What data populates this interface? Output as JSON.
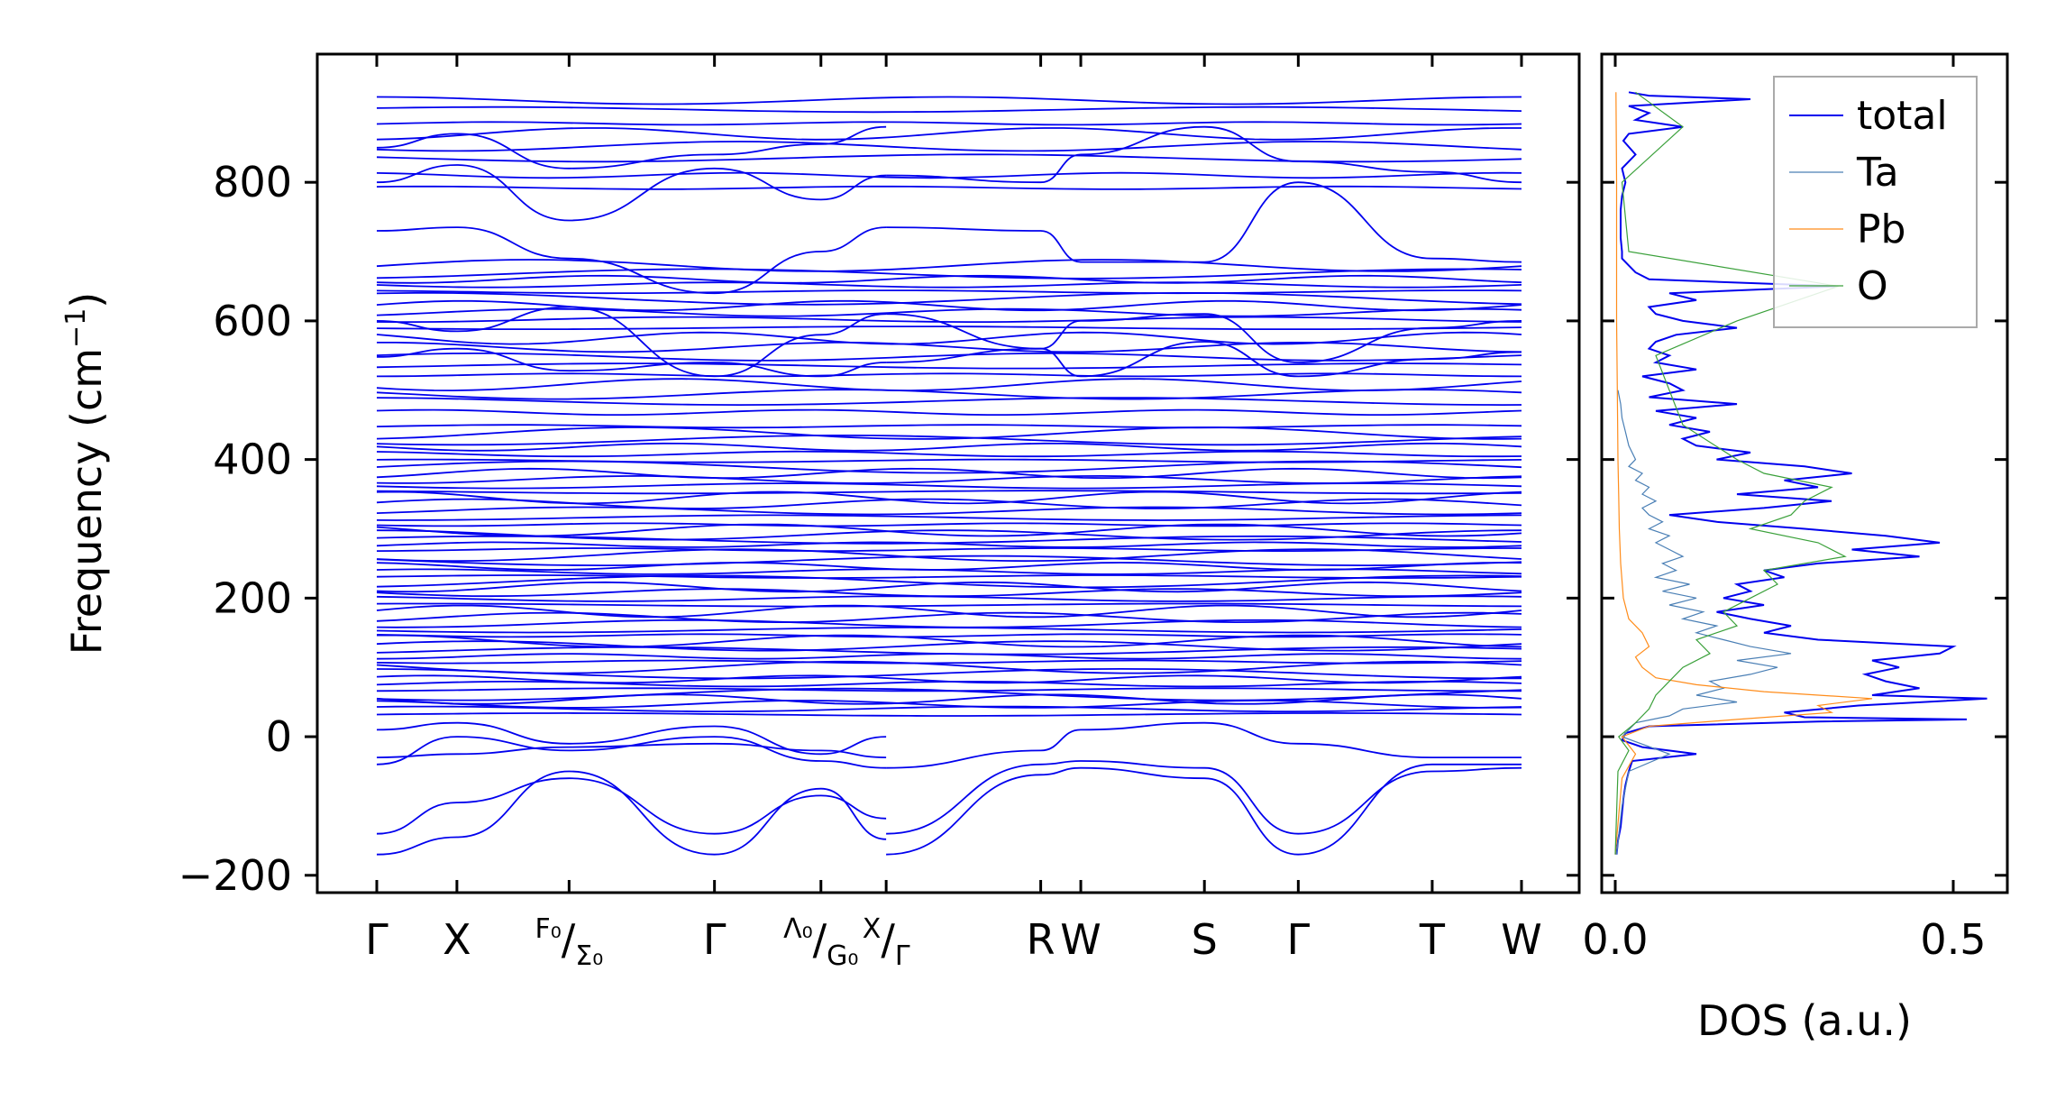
{
  "chart_data": [
    {
      "type": "line",
      "panel": "phonon-dispersion",
      "ylabel": "Frequency (cm",
      "ylabel_sup": "−1",
      "ylabel_close": ")",
      "ylim": [
        -225,
        985
      ],
      "yticks": [
        -200,
        0,
        200,
        400,
        600,
        800
      ],
      "ytick_labels": [
        "−200",
        "0",
        "200",
        "400",
        "600",
        "800"
      ],
      "x_path_range": [
        0,
        1
      ],
      "kpoints": [
        {
          "label": "Γ",
          "x": 0.0
        },
        {
          "label": "X",
          "x": 0.07
        },
        {
          "label": "F₀/Σ₀",
          "label_main": "F₀",
          "label_sub": "Σ₀",
          "x": 0.168
        },
        {
          "label": "Γ",
          "x": 0.295
        },
        {
          "label": "Λ₀/G₀",
          "label_main": "Λ₀",
          "label_sub": "G₀",
          "x": 0.388
        },
        {
          "label": "X/Γ",
          "label_main": "X",
          "label_sub": "Γ",
          "x": 0.445
        },
        {
          "label": "R",
          "x": 0.58
        },
        {
          "label": "W",
          "x": 0.615
        },
        {
          "label": "S",
          "x": 0.723
        },
        {
          "label": "Γ",
          "x": 0.805
        },
        {
          "label": "T",
          "x": 0.922
        },
        {
          "label": "W",
          "x": 1.0
        }
      ],
      "line_color": "#0000ee",
      "flat_band_frequencies": [
        32,
        40,
        47,
        54,
        61,
        68,
        76,
        83,
        91,
        100,
        108,
        116,
        124,
        131,
        138,
        146,
        154,
        163,
        172,
        181,
        190,
        199,
        208,
        216,
        224,
        231,
        238,
        246,
        254,
        262,
        270,
        277,
        284,
        291,
        298,
        306,
        316,
        326,
        336,
        345,
        353,
        362,
        371,
        380,
        389,
        398,
        408,
        418,
        428,
        438,
        448,
        468,
        484,
        494,
        508,
        522,
        535,
        548,
        562,
        575,
        590,
        602,
        612,
        622,
        632,
        642,
        652,
        660,
        668,
        680,
        792,
        810,
        835,
        852,
        870,
        885,
        905,
        918
      ],
      "dispersive_bands": [
        {
          "x": [
            0.0,
            0.07,
            0.168,
            0.295,
            0.388,
            0.445
          ],
          "y": [
            -170,
            -145,
            -50,
            -170,
            -75,
            -148
          ]
        },
        {
          "x": [
            0.0,
            0.07,
            0.168,
            0.295,
            0.388,
            0.445
          ],
          "y": [
            -140,
            -95,
            -60,
            -140,
            -85,
            -118
          ]
        },
        {
          "x": [
            0.0,
            0.07,
            0.168,
            0.295,
            0.388,
            0.445
          ],
          "y": [
            -40,
            0,
            -20,
            0,
            -35,
            -45
          ]
        },
        {
          "x": [
            0.0,
            0.07,
            0.168,
            0.295,
            0.388,
            0.445
          ],
          "y": [
            -30,
            -25,
            -15,
            -10,
            -20,
            -30
          ]
        },
        {
          "x": [
            0.0,
            0.07,
            0.168,
            0.295,
            0.388,
            0.445
          ],
          "y": [
            10,
            20,
            -10,
            15,
            -25,
            0
          ]
        },
        {
          "x": [
            0.0,
            0.07,
            0.168,
            0.295,
            0.388,
            0.445
          ],
          "y": [
            730,
            735,
            690,
            640,
            700,
            735
          ]
        },
        {
          "x": [
            0.0,
            0.07,
            0.168,
            0.295,
            0.388,
            0.445
          ],
          "y": [
            800,
            825,
            745,
            820,
            775,
            810
          ]
        },
        {
          "x": [
            0.0,
            0.07,
            0.168,
            0.295,
            0.388,
            0.445
          ],
          "y": [
            850,
            870,
            820,
            840,
            855,
            880
          ]
        },
        {
          "x": [
            0.0,
            0.07,
            0.168,
            0.295,
            0.388,
            0.445
          ],
          "y": [
            600,
            585,
            620,
            520,
            580,
            610
          ]
        },
        {
          "x": [
            0.0,
            0.07,
            0.168,
            0.295,
            0.388,
            0.445
          ],
          "y": [
            548,
            560,
            528,
            540,
            520,
            540
          ]
        },
        {
          "x": [
            0.445,
            0.58,
            0.615,
            0.723,
            0.805,
            0.922,
            1.0
          ],
          "y": [
            -170,
            -55,
            -45,
            -60,
            -170,
            -40,
            -40
          ]
        },
        {
          "x": [
            0.445,
            0.58,
            0.615,
            0.723,
            0.805,
            0.922,
            1.0
          ],
          "y": [
            -140,
            -40,
            -35,
            -45,
            -140,
            -50,
            -45
          ]
        },
        {
          "x": [
            0.445,
            0.58,
            0.615,
            0.723,
            0.805,
            0.922,
            1.0
          ],
          "y": [
            -45,
            -20,
            10,
            20,
            -10,
            -30,
            -30
          ]
        },
        {
          "x": [
            0.445,
            0.58,
            0.615,
            0.723,
            0.805,
            0.922,
            1.0
          ],
          "y": [
            735,
            730,
            685,
            685,
            800,
            690,
            685
          ]
        },
        {
          "x": [
            0.445,
            0.58,
            0.615,
            0.723,
            0.805,
            0.922,
            1.0
          ],
          "y": [
            810,
            800,
            840,
            880,
            830,
            815,
            800
          ]
        },
        {
          "x": [
            0.445,
            0.58,
            0.615,
            0.723,
            0.805,
            0.922,
            1.0
          ],
          "y": [
            610,
            560,
            600,
            610,
            540,
            590,
            600
          ]
        },
        {
          "x": [
            0.445,
            0.58,
            0.615,
            0.723,
            0.805,
            0.922,
            1.0
          ],
          "y": [
            540,
            560,
            520,
            570,
            520,
            545,
            555
          ]
        }
      ]
    },
    {
      "type": "line",
      "panel": "density-of-states",
      "xlabel": "DOS (a.u.)",
      "xlim": [
        -0.02,
        0.58
      ],
      "xticks": [
        0.0,
        0.5
      ],
      "xtick_labels": [
        "0.0",
        "0.5"
      ],
      "ylim": [
        -225,
        985
      ],
      "legend_position": "top-right",
      "series": [
        {
          "name": "total",
          "color": "#0000ee",
          "y": [
            -170,
            -150,
            -130,
            -110,
            -90,
            -70,
            -50,
            -35,
            -25,
            -15,
            -5,
            5,
            15,
            22,
            25,
            28,
            35,
            45,
            55,
            60,
            70,
            80,
            90,
            100,
            110,
            120,
            130,
            140,
            150,
            160,
            170,
            180,
            190,
            200,
            210,
            220,
            230,
            240,
            250,
            260,
            270,
            280,
            290,
            300,
            310,
            320,
            330,
            340,
            350,
            360,
            370,
            380,
            390,
            400,
            410,
            420,
            430,
            440,
            450,
            460,
            470,
            480,
            490,
            500,
            510,
            520,
            530,
            540,
            550,
            560,
            570,
            580,
            590,
            600,
            610,
            620,
            630,
            640,
            650,
            660,
            670,
            680,
            690,
            700,
            720,
            740,
            760,
            780,
            800,
            820,
            840,
            860,
            870,
            880,
            890,
            900,
            910,
            920,
            925,
            930
          ],
          "x": [
            0.002,
            0.004,
            0.008,
            0.01,
            0.012,
            0.015,
            0.02,
            0.025,
            0.12,
            0.04,
            0.01,
            0.015,
            0.05,
            0.3,
            0.52,
            0.28,
            0.25,
            0.36,
            0.55,
            0.38,
            0.45,
            0.4,
            0.37,
            0.42,
            0.38,
            0.48,
            0.5,
            0.3,
            0.22,
            0.26,
            0.2,
            0.15,
            0.22,
            0.16,
            0.2,
            0.18,
            0.25,
            0.22,
            0.3,
            0.45,
            0.35,
            0.48,
            0.4,
            0.28,
            0.15,
            0.08,
            0.22,
            0.32,
            0.18,
            0.3,
            0.25,
            0.35,
            0.28,
            0.15,
            0.2,
            0.12,
            0.1,
            0.14,
            0.08,
            0.12,
            0.06,
            0.18,
            0.05,
            0.1,
            0.08,
            0.04,
            0.12,
            0.06,
            0.08,
            0.05,
            0.06,
            0.09,
            0.18,
            0.1,
            0.06,
            0.05,
            0.12,
            0.08,
            0.33,
            0.05,
            0.03,
            0.02,
            0.01,
            0.01,
            0.008,
            0.008,
            0.008,
            0.01,
            0.015,
            0.01,
            0.03,
            0.012,
            0.02,
            0.1,
            0.03,
            0.05,
            0.02,
            0.2,
            0.05,
            0.02
          ]
        },
        {
          "name": "Ta",
          "color": "#4a7fb5",
          "y": [
            -170,
            -100,
            -50,
            -25,
            0,
            20,
            30,
            40,
            50,
            60,
            70,
            80,
            90,
            100,
            110,
            120,
            130,
            140,
            150,
            160,
            170,
            180,
            190,
            200,
            210,
            220,
            230,
            240,
            250,
            260,
            270,
            280,
            290,
            300,
            310,
            320,
            330,
            340,
            350,
            360,
            370,
            380,
            390,
            400,
            420,
            440,
            460,
            480,
            500
          ],
          "x": [
            0.002,
            0.01,
            0.02,
            0.08,
            0.01,
            0.03,
            0.08,
            0.1,
            0.18,
            0.12,
            0.16,
            0.14,
            0.2,
            0.24,
            0.18,
            0.26,
            0.2,
            0.16,
            0.12,
            0.15,
            0.1,
            0.13,
            0.08,
            0.12,
            0.07,
            0.11,
            0.06,
            0.09,
            0.07,
            0.1,
            0.08,
            0.06,
            0.08,
            0.05,
            0.07,
            0.05,
            0.04,
            0.06,
            0.04,
            0.05,
            0.03,
            0.04,
            0.02,
            0.03,
            0.02,
            0.015,
            0.01,
            0.008,
            0.004
          ]
        },
        {
          "name": "Pb",
          "color": "#ff8c1a",
          "y": [
            -170,
            -60,
            -25,
            0,
            15,
            25,
            35,
            45,
            55,
            65,
            75,
            85,
            100,
            115,
            130,
            150,
            170,
            200,
            250,
            300,
            350,
            400,
            500,
            600,
            700,
            800,
            930
          ],
          "x": [
            0.0,
            0.01,
            0.03,
            0.01,
            0.05,
            0.18,
            0.32,
            0.3,
            0.38,
            0.22,
            0.12,
            0.06,
            0.04,
            0.03,
            0.05,
            0.04,
            0.02,
            0.012,
            0.008,
            0.006,
            0.005,
            0.004,
            0.003,
            0.002,
            0.002,
            0.002,
            0.001
          ]
        },
        {
          "name": "O",
          "color": "#3aa03a",
          "y": [
            -170,
            -50,
            -20,
            0,
            20,
            40,
            60,
            80,
            100,
            120,
            140,
            160,
            180,
            200,
            220,
            240,
            260,
            280,
            300,
            320,
            340,
            360,
            380,
            400,
            450,
            500,
            550,
            600,
            650,
            700,
            800,
            880,
            930
          ],
          "x": [
            0.0,
            0.004,
            0.02,
            0.005,
            0.03,
            0.05,
            0.06,
            0.08,
            0.1,
            0.14,
            0.12,
            0.18,
            0.16,
            0.2,
            0.24,
            0.22,
            0.34,
            0.3,
            0.2,
            0.26,
            0.28,
            0.32,
            0.22,
            0.18,
            0.1,
            0.08,
            0.06,
            0.18,
            0.33,
            0.02,
            0.01,
            0.1,
            0.03
          ]
        }
      ]
    }
  ]
}
